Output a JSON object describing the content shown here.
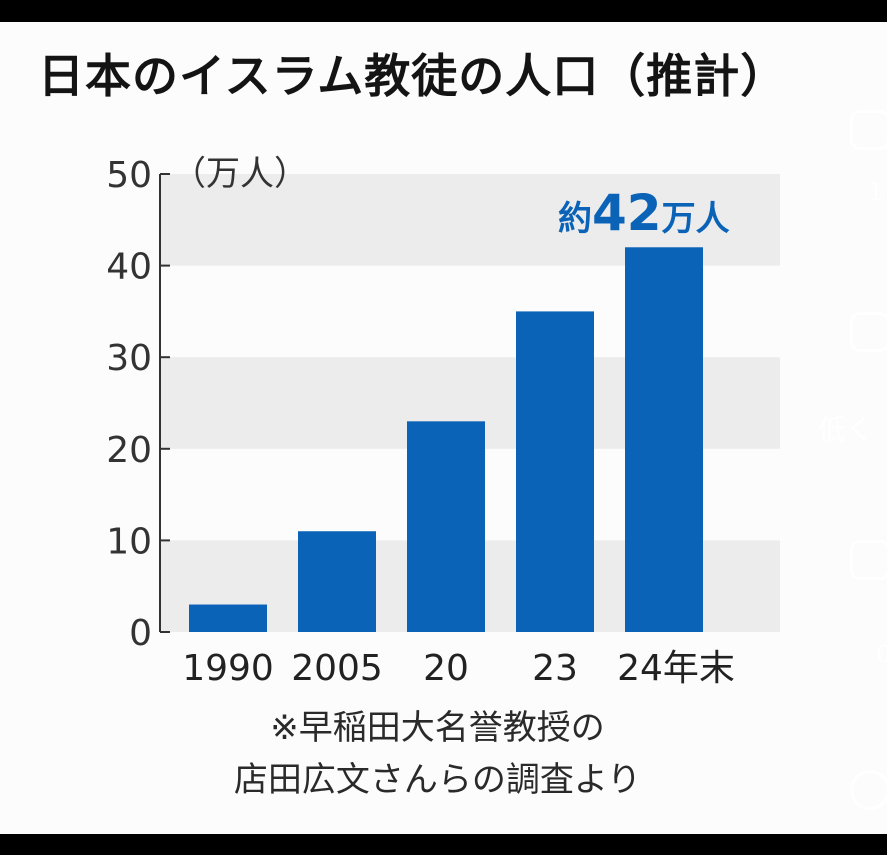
{
  "chart_data": {
    "type": "bar",
    "title": "日本のイスラム教徒の人口（推計）",
    "unit_label": "（万人）",
    "categories": [
      "1990",
      "2005",
      "20",
      "23",
      "24年末"
    ],
    "values": [
      3,
      11,
      23,
      35,
      42
    ],
    "ylim": [
      0,
      50
    ],
    "yticks": [
      "0",
      "10",
      "20",
      "30",
      "40",
      "50"
    ],
    "ytick_values": [
      0,
      10,
      20,
      30,
      40,
      50
    ],
    "grid": "alternating horizontal bands",
    "bar_color": "#0b63b8",
    "band_color": "#ececec",
    "annotation": {
      "prefix": "約",
      "value": "42",
      "suffix": "万人",
      "color": "#0b63b8"
    },
    "source_note": [
      "※早稲田大名誉教授の",
      "店田広文さんらの調査より"
    ]
  },
  "overlay": {
    "side_text": "低く",
    "digit_top": "1",
    "digit_bottom": "0"
  }
}
